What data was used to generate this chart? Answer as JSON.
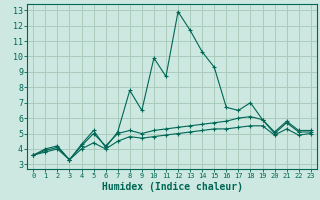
{
  "xlabel": "Humidex (Indice chaleur)",
  "background_color": "#cce8e0",
  "grid_color": "#aaccbb",
  "line_color": "#006655",
  "xlim": [
    -0.5,
    23.5
  ],
  "ylim": [
    2.7,
    13.4
  ],
  "xticks": [
    0,
    1,
    2,
    3,
    4,
    5,
    6,
    7,
    8,
    9,
    10,
    11,
    12,
    13,
    14,
    15,
    16,
    17,
    18,
    19,
    20,
    21,
    22,
    23
  ],
  "yticks": [
    3,
    4,
    5,
    6,
    7,
    8,
    9,
    10,
    11,
    12,
    13
  ],
  "series": [
    {
      "x": [
        0,
        1,
        2,
        3,
        4,
        5,
        6,
        7,
        8,
        9,
        10,
        11,
        12,
        13,
        14,
        15,
        16,
        17,
        18,
        19,
        20,
        21,
        22,
        23
      ],
      "y": [
        3.6,
        4.0,
        4.2,
        3.3,
        4.3,
        5.2,
        4.1,
        5.1,
        7.8,
        6.5,
        9.9,
        8.7,
        12.9,
        11.7,
        10.3,
        9.3,
        6.7,
        6.5,
        7.0,
        5.9,
        5.1,
        5.8,
        5.2,
        5.2
      ]
    },
    {
      "x": [
        0,
        1,
        2,
        3,
        4,
        5,
        6,
        7,
        8,
        9,
        10,
        11,
        12,
        13,
        14,
        15,
        16,
        17,
        18,
        19,
        20,
        21,
        22,
        23
      ],
      "y": [
        3.6,
        3.9,
        4.1,
        3.3,
        4.2,
        5.0,
        4.2,
        5.0,
        5.2,
        5.0,
        5.2,
        5.3,
        5.4,
        5.5,
        5.6,
        5.7,
        5.8,
        6.0,
        6.1,
        5.9,
        5.0,
        5.7,
        5.1,
        5.1
      ]
    },
    {
      "x": [
        0,
        1,
        2,
        3,
        4,
        5,
        6,
        7,
        8,
        9,
        10,
        11,
        12,
        13,
        14,
        15,
        16,
        17,
        18,
        19,
        20,
        21,
        22,
        23
      ],
      "y": [
        3.6,
        3.8,
        4.0,
        3.3,
        4.0,
        4.4,
        4.0,
        4.5,
        4.8,
        4.7,
        4.8,
        4.9,
        5.0,
        5.1,
        5.2,
        5.3,
        5.3,
        5.4,
        5.5,
        5.5,
        4.9,
        5.3,
        4.9,
        5.0
      ]
    }
  ]
}
